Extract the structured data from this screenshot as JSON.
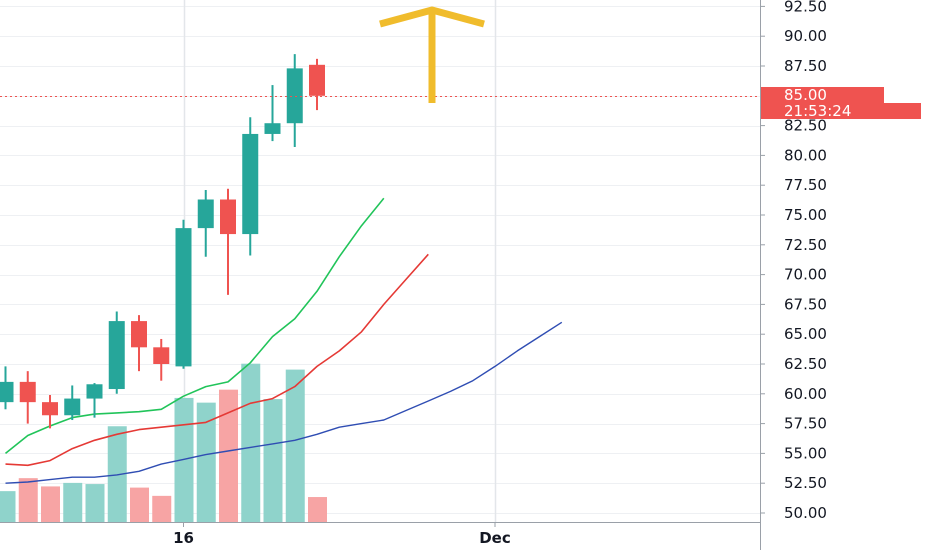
{
  "chart_data": {
    "type": "candlestick",
    "title": "",
    "xlabel": "",
    "ylabel": "",
    "ylim": [
      49.0,
      93.0
    ],
    "y_ticks": [
      "50.00",
      "52.50",
      "55.00",
      "57.50",
      "60.00",
      "62.50",
      "65.00",
      "67.50",
      "70.00",
      "72.50",
      "75.00",
      "77.50",
      "80.00",
      "82.50",
      "85.00",
      "87.50",
      "90.00",
      "92.50"
    ],
    "x_ticks": [
      {
        "label": "16",
        "index": 8
      },
      {
        "label": "Dec",
        "index": 22
      }
    ],
    "grid": true,
    "colors": {
      "up": "#26a69a",
      "down": "#ef5350",
      "vol_up": "#8fd3cb",
      "vol_down": "#f7a4a4",
      "ma_fast": "#21c45a",
      "ma_mid": "#e53935",
      "ma_slow": "#2f4db3",
      "arrow": "#f0bc2c",
      "grid": "#eef0f3",
      "axis": "#9aa0a8"
    },
    "candles": [
      {
        "o": 59.3,
        "h": 62.3,
        "l": 58.7,
        "c": 61.0
      },
      {
        "o": 61.0,
        "h": 61.9,
        "l": 57.5,
        "c": 59.3
      },
      {
        "o": 59.3,
        "h": 59.9,
        "l": 57.1,
        "c": 58.2
      },
      {
        "o": 58.2,
        "h": 60.7,
        "l": 57.8,
        "c": 59.6
      },
      {
        "o": 59.6,
        "h": 60.9,
        "l": 58.0,
        "c": 60.8
      },
      {
        "o": 60.4,
        "h": 66.9,
        "l": 60.0,
        "c": 66.1
      },
      {
        "o": 66.1,
        "h": 66.6,
        "l": 61.9,
        "c": 63.9
      },
      {
        "o": 63.9,
        "h": 64.6,
        "l": 61.1,
        "c": 62.5
      },
      {
        "o": 62.3,
        "h": 74.6,
        "l": 62.1,
        "c": 73.9
      },
      {
        "o": 73.9,
        "h": 77.1,
        "l": 71.5,
        "c": 76.3
      },
      {
        "o": 76.3,
        "h": 77.2,
        "l": 68.3,
        "c": 73.4
      },
      {
        "o": 73.4,
        "h": 83.2,
        "l": 71.6,
        "c": 81.8
      },
      {
        "o": 81.8,
        "h": 85.9,
        "l": 81.2,
        "c": 82.7
      },
      {
        "o": 82.7,
        "h": 88.5,
        "l": 80.7,
        "c": 87.3
      },
      {
        "o": 87.6,
        "h": 88.1,
        "l": 83.8,
        "c": 85.0
      }
    ],
    "volume_rel": [
      0.27,
      0.38,
      0.31,
      0.34,
      0.33,
      0.82,
      0.3,
      0.23,
      1.06,
      1.02,
      1.13,
      1.35,
      1.05,
      1.3,
      0.22
    ],
    "series": [
      {
        "values": [
          55.0,
          56.5,
          57.3,
          58.0,
          58.3,
          58.4,
          58.5,
          58.7,
          59.8,
          60.6,
          61.0,
          62.6,
          64.8,
          66.3,
          68.6,
          71.5,
          74.1,
          76.4
        ]
      },
      {
        "values": [
          54.1,
          54.0,
          54.4,
          55.4,
          56.1,
          56.6,
          57.0,
          57.2,
          57.4,
          57.6,
          58.4,
          59.2,
          59.6,
          60.6,
          62.3,
          63.6,
          65.2,
          67.5,
          69.6,
          71.7
        ]
      },
      {
        "values": [
          52.5,
          52.6,
          52.8,
          53.0,
          53.0,
          53.2,
          53.5,
          54.1,
          54.5,
          54.9,
          55.2,
          55.5,
          55.8,
          56.1,
          56.6,
          57.2,
          57.5,
          57.8,
          58.6,
          59.4,
          60.2,
          61.1,
          62.3,
          63.6,
          64.8,
          66.0
        ]
      }
    ],
    "last_price_label": "85.00",
    "countdown_label": "21:53:24"
  }
}
